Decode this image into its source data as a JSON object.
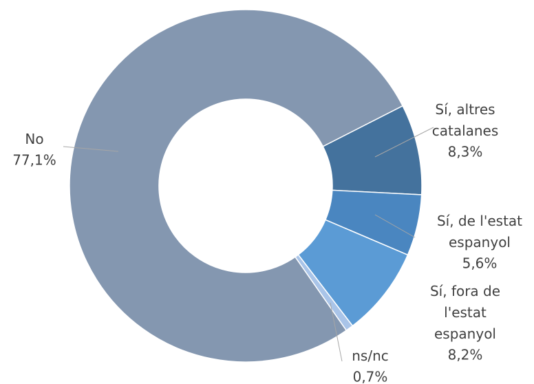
{
  "chart_data": {
    "type": "donut",
    "categories": [
      "Sí, altres catalanes",
      "Sí, de l'estat espanyol",
      "Sí, fora de l'estat espanyol",
      "ns/nc",
      "No"
    ],
    "values": [
      8.3,
      5.6,
      8.2,
      0.7,
      77.1
    ],
    "value_labels": [
      "8,3%",
      "5,6%",
      "8,2%",
      "0,7%",
      "77,1%"
    ],
    "colors": [
      "#44729d",
      "#4a86c0",
      "#5b9bd5",
      "#a9c4e8",
      "#8497b0"
    ]
  }
}
